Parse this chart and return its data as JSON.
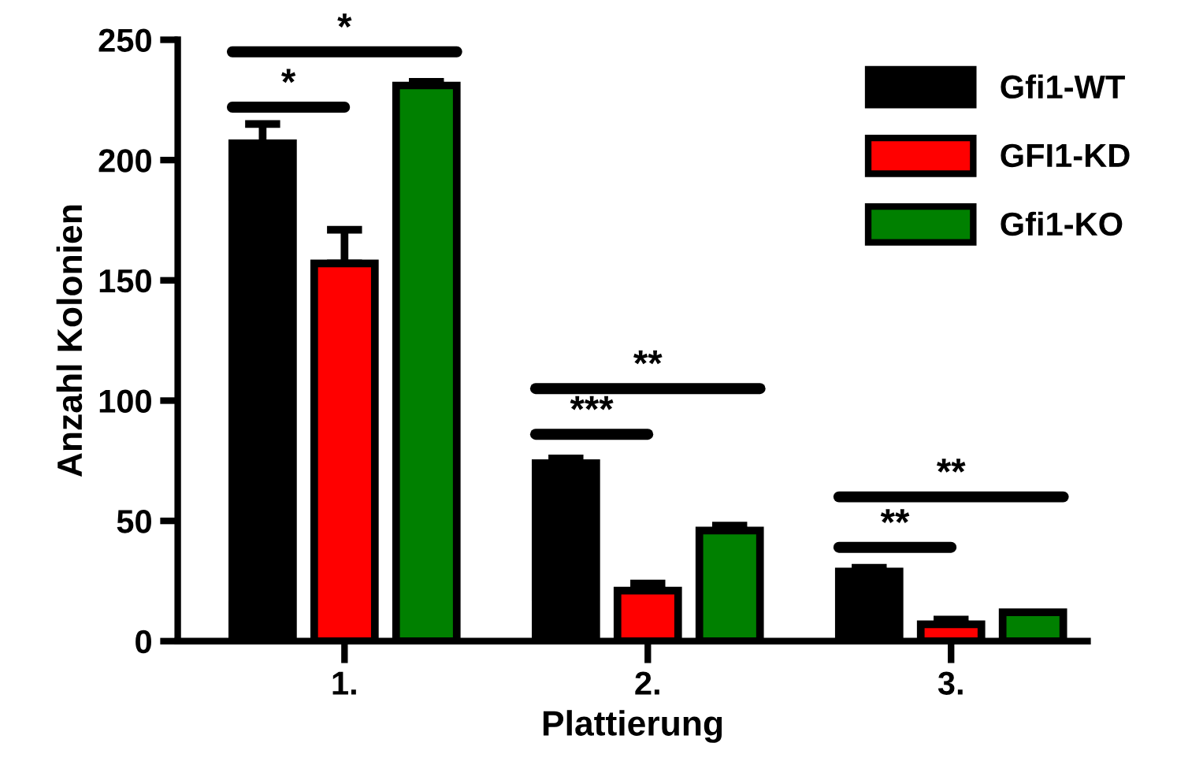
{
  "chart_data": {
    "type": "bar",
    "xlabel": "Plattierung",
    "ylabel": "Anzahl Kolonien",
    "categories": [
      "1.",
      "2.",
      "3."
    ],
    "series": [
      {
        "name": "Gfi1-WT",
        "color": "#000000",
        "values": [
          207,
          74,
          29
        ],
        "errors": [
          8,
          2,
          1.5
        ]
      },
      {
        "name": "GFI1-KD",
        "color": "#ff0000",
        "values": [
          157,
          21,
          7
        ],
        "errors": [
          14,
          3,
          2
        ]
      },
      {
        "name": "Gfi1-KO",
        "color": "#008000",
        "values": [
          231,
          46,
          12
        ],
        "errors": [
          1.5,
          2,
          null
        ]
      }
    ],
    "ylim": [
      0,
      250
    ],
    "yticks": [
      0,
      50,
      100,
      150,
      200,
      250
    ],
    "annotations": [
      "*",
      "*",
      "***",
      "**",
      "**",
      "**"
    ],
    "legend": "top right",
    "grid": false
  }
}
